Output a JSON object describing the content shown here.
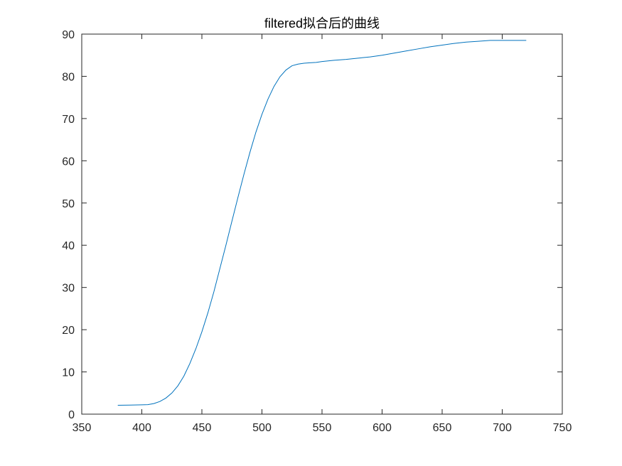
{
  "chart_data": {
    "type": "line",
    "title": "filtered拟合后的曲线",
    "xlabel": "",
    "ylabel": "",
    "xlim": [
      350,
      750
    ],
    "ylim": [
      0,
      90
    ],
    "xticks": [
      350,
      400,
      450,
      500,
      550,
      600,
      650,
      700,
      750
    ],
    "yticks": [
      0,
      10,
      20,
      30,
      40,
      50,
      60,
      70,
      80,
      90
    ],
    "grid": false,
    "colors": {
      "line": "#0072BD",
      "axes": "#262626",
      "background": "#ffffff"
    },
    "series": [
      {
        "x": [
          380,
          390,
          400,
          405,
          410,
          415,
          420,
          425,
          430,
          435,
          440,
          445,
          450,
          455,
          460,
          465,
          470,
          475,
          480,
          485,
          490,
          495,
          500,
          505,
          510,
          515,
          520,
          525,
          530,
          535,
          540,
          545,
          550,
          560,
          570,
          580,
          590,
          600,
          610,
          620,
          630,
          640,
          650,
          660,
          670,
          680,
          690,
          700,
          710,
          720
        ],
        "y": [
          2.1,
          2.15,
          2.2,
          2.25,
          2.5,
          3.0,
          3.8,
          5.0,
          6.7,
          9.0,
          12.0,
          15.5,
          19.5,
          24.0,
          29.0,
          34.5,
          40.0,
          45.7,
          51.3,
          56.8,
          62.0,
          66.8,
          71.0,
          74.6,
          77.6,
          79.9,
          81.5,
          82.5,
          82.9,
          83.1,
          83.2,
          83.3,
          83.5,
          83.8,
          84.0,
          84.3,
          84.6,
          85.0,
          85.5,
          86.0,
          86.5,
          87.0,
          87.4,
          87.8,
          88.1,
          88.3,
          88.5,
          88.5,
          88.5,
          88.5
        ]
      }
    ]
  }
}
